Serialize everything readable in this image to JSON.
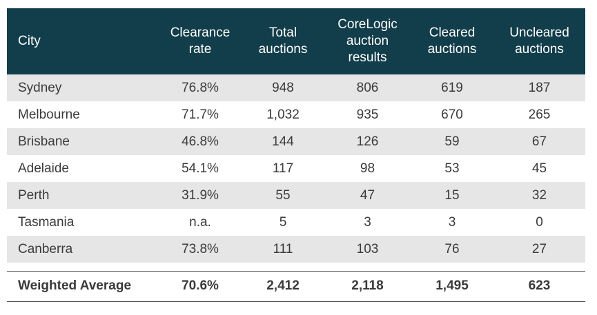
{
  "headers": {
    "city": "City",
    "clearance_rate": [
      "Clearance",
      "rate"
    ],
    "total_auctions": [
      "Total",
      "auctions"
    ],
    "corelogic_results": [
      "CoreLogic",
      "auction",
      "results"
    ],
    "cleared_auctions": [
      "Cleared",
      "auctions"
    ],
    "uncleared_auctions": [
      "Uncleared",
      "auctions"
    ]
  },
  "rows": [
    {
      "city": "Sydney",
      "clearance_rate": "76.8%",
      "total": "948",
      "corelogic": "806",
      "cleared": "619",
      "uncleared": "187"
    },
    {
      "city": "Melbourne",
      "clearance_rate": "71.7%",
      "total": "1,032",
      "corelogic": "935",
      "cleared": "670",
      "uncleared": "265"
    },
    {
      "city": "Brisbane",
      "clearance_rate": "46.8%",
      "total": "144",
      "corelogic": "126",
      "cleared": "59",
      "uncleared": "67"
    },
    {
      "city": "Adelaide",
      "clearance_rate": "54.1%",
      "total": "117",
      "corelogic": "98",
      "cleared": "53",
      "uncleared": "45"
    },
    {
      "city": "Perth",
      "clearance_rate": "31.9%",
      "total": "55",
      "corelogic": "47",
      "cleared": "15",
      "uncleared": "32"
    },
    {
      "city": "Tasmania",
      "clearance_rate": "n.a.",
      "total": "5",
      "corelogic": "3",
      "cleared": "3",
      "uncleared": "0"
    },
    {
      "city": "Canberra",
      "clearance_rate": "73.8%",
      "total": "111",
      "corelogic": "103",
      "cleared": "76",
      "uncleared": "27"
    }
  ],
  "weighted_average": {
    "label": "Weighted Average",
    "clearance_rate": "70.6%",
    "total": "2,412",
    "corelogic": "2,118",
    "cleared": "1,495",
    "uncleared": "623"
  },
  "colors": {
    "header_bg": "#123d4a",
    "header_text": "#ffffff",
    "shaded_row": "#e6e6e6",
    "body_text": "#3a3a3a"
  }
}
